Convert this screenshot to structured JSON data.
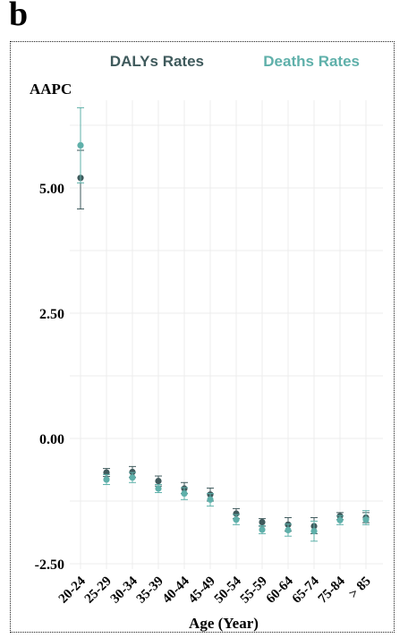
{
  "panel_label": "b",
  "colors": {
    "dalys": "#3f5a5c",
    "deaths": "#5fb0aa",
    "grid": "#ececec"
  },
  "chart_data": {
    "type": "scatter",
    "title": "",
    "ylabel": "AAPC",
    "xlabel": "Age (Year)",
    "ylim": [
      -2.5,
      6.7
    ],
    "yticks": [
      -2.5,
      0,
      2.5,
      5
    ],
    "ytick_labels": [
      "-2.50",
      "0.00",
      "2.50",
      "5.00"
    ],
    "categories": [
      "20-24",
      "25-29",
      "30-34",
      "35-39",
      "40-44",
      "45-49",
      "50-54",
      "55-59",
      "60-64",
      "65-74",
      "75-84",
      "> 85"
    ],
    "legend": {
      "placement": "top"
    },
    "series": [
      {
        "name": "DALYs Rates",
        "color": "#3f5a5c",
        "values": [
          5.2,
          -0.68,
          -0.67,
          -0.85,
          -1.0,
          -1.12,
          -1.5,
          -1.67,
          -1.72,
          -1.75,
          -1.55,
          -1.58
        ],
        "lower": [
          4.58,
          -0.76,
          -0.78,
          -0.95,
          -1.1,
          -1.25,
          -1.6,
          -1.75,
          -1.85,
          -1.9,
          -1.62,
          -1.68
        ],
        "upper": [
          5.75,
          -0.6,
          -0.56,
          -0.75,
          -0.88,
          -0.99,
          -1.4,
          -1.6,
          -1.58,
          -1.58,
          -1.48,
          -1.48
        ]
      },
      {
        "name": "Deaths Rates",
        "color": "#5fb0aa",
        "values": [
          5.85,
          -0.82,
          -0.78,
          -1.0,
          -1.1,
          -1.22,
          -1.62,
          -1.82,
          -1.83,
          -1.85,
          -1.63,
          -1.62
        ],
        "lower": [
          5.1,
          -0.92,
          -0.88,
          -1.08,
          -1.22,
          -1.35,
          -1.72,
          -1.9,
          -1.95,
          -2.05,
          -1.72,
          -1.72
        ],
        "upper": [
          6.6,
          -0.72,
          -0.68,
          -0.92,
          -0.98,
          -1.1,
          -1.52,
          -1.74,
          -1.71,
          -1.65,
          -1.54,
          -1.44
        ]
      }
    ]
  }
}
